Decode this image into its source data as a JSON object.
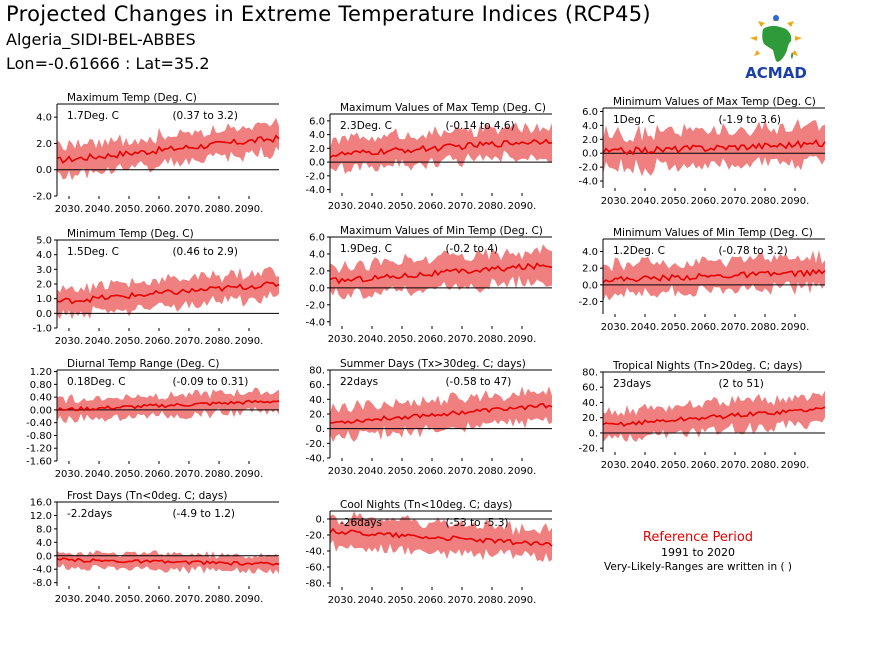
{
  "header": {
    "title": "Projected Changes in Extreme Temperature Indices (RCP45)",
    "region": "Algeria_SIDI-BEL-ABBES",
    "coords": "Lon=-0.61666 : Lat=35.2"
  },
  "logo": {
    "text": "ACMAD",
    "icon": "acmad-africa-logo"
  },
  "reference": {
    "title": "Reference Period",
    "years": "1991 to 2020",
    "note": "Very-Likely-Ranges are written in ( )"
  },
  "colors": {
    "band": "#f08080",
    "line": "#e80000",
    "zero": "#000000"
  },
  "chart_data": [
    {
      "type": "area",
      "title": "Maximum Temp (Deg. C)",
      "value": "1.7Deg. C",
      "range": "(0.37 to 3.2)",
      "x_ticks": [
        "2030.",
        "2040.",
        "2050.",
        "2060.",
        "2070.",
        "2080.",
        "2090."
      ],
      "y_ticks": [
        "4.0",
        "2.0",
        "0.0",
        "-2.0"
      ],
      "ylim": [
        -2.0,
        5.0
      ],
      "xlim": [
        2026,
        2100
      ],
      "median": {
        "start": 0.7,
        "end": 2.4,
        "noise": 0.25
      },
      "band_spread": 1.2
    },
    {
      "type": "area",
      "title": "Maximum Values of Max Temp (Deg. C)",
      "value": "2.3Deg. C",
      "range": "(-0.14 to 4.6)",
      "x_ticks": [
        "2030.",
        "2040.",
        "2050.",
        "2060.",
        "2070.",
        "2080.",
        "2090."
      ],
      "y_ticks": [
        "6.0",
        "4.0",
        "2.0",
        "0.0",
        "-2.0",
        "-4.0"
      ],
      "ylim": [
        -4.5,
        7.0
      ],
      "xlim": [
        2026,
        2100
      ],
      "median": {
        "start": 1.0,
        "end": 3.2,
        "noise": 0.45
      },
      "band_spread": 2.4
    },
    {
      "type": "area",
      "title": "Minimum Values of Max Temp (Deg. C)",
      "value": "1Deg. C",
      "range": "(-1.9 to 3.6)",
      "x_ticks": [
        "2030.",
        "2040.",
        "2050.",
        "2060.",
        "2070.",
        "2080.",
        "2090."
      ],
      "y_ticks": [
        "6.0",
        "4.0",
        "2.0",
        "0.0",
        "-2.0",
        "-4.0"
      ],
      "ylim": [
        -5.0,
        6.5
      ],
      "xlim": [
        2026,
        2100
      ],
      "median": {
        "start": 0.2,
        "end": 1.4,
        "noise": 0.5
      },
      "band_spread": 2.8
    },
    {
      "type": "area",
      "title": "Minimum Temp (Deg. C)",
      "value": "1.5Deg. C",
      "range": "(0.46 to 2.9)",
      "x_ticks": [
        "2030.",
        "2040.",
        "2050.",
        "2060.",
        "2070.",
        "2080.",
        "2090."
      ],
      "y_ticks": [
        "5.0",
        "4.0",
        "3.0",
        "2.0",
        "1.0",
        "0.0",
        "-1.0"
      ],
      "ylim": [
        -1.0,
        5.0
      ],
      "xlim": [
        2026,
        2100
      ],
      "median": {
        "start": 0.8,
        "end": 2.0,
        "noise": 0.2
      },
      "band_spread": 1.0
    },
    {
      "type": "area",
      "title": "Maximum Values of Min Temp (Deg. C)",
      "value": "1.9Deg. C",
      "range": "(-0.2 to 4)",
      "x_ticks": [
        "2030.",
        "2040.",
        "2050.",
        "2060.",
        "2070.",
        "2080.",
        "2090."
      ],
      "y_ticks": [
        "6.0",
        "4.0",
        "2.0",
        "0.0",
        "-2.0",
        "-4.0"
      ],
      "ylim": [
        -4.5,
        6.0
      ],
      "xlim": [
        2026,
        2100
      ],
      "median": {
        "start": 0.8,
        "end": 2.7,
        "noise": 0.35
      },
      "band_spread": 2.0
    },
    {
      "type": "area",
      "title": "Minimum Values of Min Temp (Deg. C)",
      "value": "1.2Deg. C",
      "range": "(-0.78 to 3.2)",
      "x_ticks": [
        "2030.",
        "2040.",
        "2050.",
        "2060.",
        "2070.",
        "2080.",
        "2090."
      ],
      "y_ticks": [
        "4.0",
        "2.0",
        "0.0",
        "-2.0"
      ],
      "ylim": [
        -3.5,
        5.5
      ],
      "xlim": [
        2026,
        2100
      ],
      "median": {
        "start": 0.6,
        "end": 1.5,
        "noise": 0.35
      },
      "band_spread": 2.0
    },
    {
      "type": "area",
      "title": "Diurnal Temp Range (Deg. C)",
      "value": "0.18Deg. C",
      "range": "(-0.09 to 0.31)",
      "x_ticks": [
        "2030.",
        "2040.",
        "2050.",
        "2060.",
        "2070.",
        "2080.",
        "2090."
      ],
      "y_ticks": [
        "1.20",
        "0.80",
        "0.40",
        "0.00",
        "-0.40",
        "-0.80",
        "-1.20",
        "-1.60"
      ],
      "ylim": [
        -1.6,
        1.25
      ],
      "xlim": [
        2026,
        2100
      ],
      "median": {
        "start": 0.0,
        "end": 0.28,
        "noise": 0.06
      },
      "band_spread": 0.35
    },
    {
      "type": "area",
      "title": "Summer Days (Tx>30deg. C; days)",
      "value": "22days",
      "range": "(-0.58 to 47)",
      "x_ticks": [
        "2030.",
        "2040.",
        "2050.",
        "2060.",
        "2070.",
        "2080.",
        "2090."
      ],
      "y_ticks": [
        "80.",
        "60.",
        "40.",
        "20.",
        "0.",
        "-20.",
        "-40."
      ],
      "ylim": [
        -40,
        80
      ],
      "xlim": [
        2026,
        2100
      ],
      "median": {
        "start": 8,
        "end": 32,
        "noise": 3
      },
      "band_spread": 22
    },
    {
      "type": "area",
      "title": "Tropical Nights (Tn>20deg. C; days)",
      "value": "23days",
      "range": "(2 to 51)",
      "x_ticks": [
        "2030.",
        "2040.",
        "2050.",
        "2060.",
        "2070.",
        "2080.",
        "2090."
      ],
      "y_ticks": [
        "80.",
        "60.",
        "40.",
        "20.",
        "0.",
        "-20."
      ],
      "ylim": [
        -25,
        80
      ],
      "xlim": [
        2026,
        2100
      ],
      "median": {
        "start": 10,
        "end": 32,
        "noise": 3
      },
      "band_spread": 20
    },
    {
      "type": "area",
      "title": "Frost Days (Tn<0deg. C; days)",
      "value": "-2.2days",
      "range": "(-4.9 to 1.2)",
      "x_ticks": [
        "2030.",
        "2040.",
        "2050.",
        "2060.",
        "2070.",
        "2080.",
        "2090."
      ],
      "y_ticks": [
        "16.0",
        "12.0",
        "8.0",
        "4.0",
        "0.0",
        "-4.0",
        "-8.0"
      ],
      "ylim": [
        -9.0,
        16.0
      ],
      "xlim": [
        2026,
        2100
      ],
      "median": {
        "start": -1.2,
        "end": -2.5,
        "noise": 0.5
      },
      "band_spread": 2.6
    },
    {
      "type": "area",
      "title": "Cool Nights (Tn<10deg. C; days)",
      "value": "-26days",
      "range": "(-53 to -5.3)",
      "x_ticks": [
        "2030.",
        "2040.",
        "2050.",
        "2060.",
        "2070.",
        "2080.",
        "2090."
      ],
      "y_ticks": [
        "0.",
        "-20.",
        "-40.",
        "-60.",
        "-80."
      ],
      "ylim": [
        -85,
        10
      ],
      "xlim": [
        2026,
        2100
      ],
      "median": {
        "start": -15,
        "end": -32,
        "noise": 3
      },
      "band_spread": 20
    }
  ]
}
